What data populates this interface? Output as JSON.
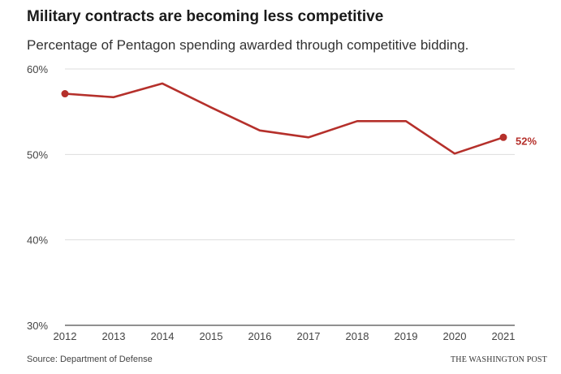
{
  "chart_data": {
    "type": "line",
    "title": "Military contracts are becoming less competitive",
    "subtitle": "Percentage of Pentagon spending awarded through competitive bidding.",
    "x": [
      "2012",
      "2013",
      "2014",
      "2015",
      "2016",
      "2017",
      "2018",
      "2019",
      "2020",
      "2021"
    ],
    "series": [
      {
        "values": [
          57.1,
          56.7,
          58.3,
          55.5,
          52.8,
          52.0,
          53.9,
          53.9,
          50.1,
          52.0
        ],
        "color": "#b5302b"
      }
    ],
    "ylim": [
      30,
      60
    ],
    "y_ticks": [
      "30%",
      "40%",
      "50%",
      "60%"
    ],
    "y_tick_values": [
      30,
      40,
      50,
      60
    ],
    "grid": true,
    "end_label": "52%",
    "markers": "first-and-last"
  },
  "footer": {
    "source": "Source: Department of Defense",
    "credit": "THE WASHINGTON POST"
  }
}
